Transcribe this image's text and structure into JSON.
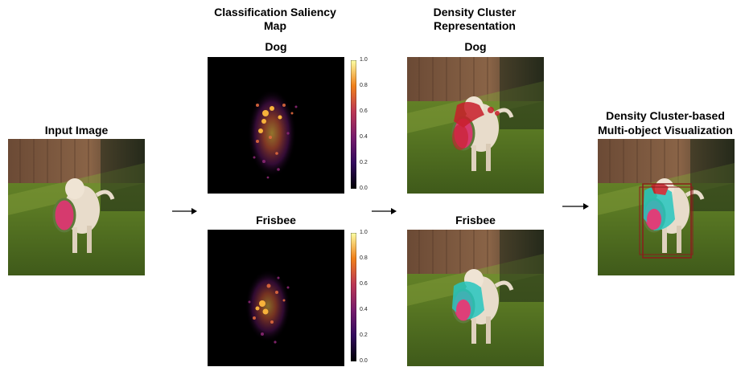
{
  "panels": {
    "input": {
      "title": "Input Image"
    },
    "saliency": {
      "title_line1": "Classification Saliency",
      "title_line2": "Map"
    },
    "density": {
      "title_line1": "Density Cluster",
      "title_line2": "Representation"
    },
    "final": {
      "title_line1": "Density Cluster-based",
      "title_line2": "Multi-object Visualization"
    }
  },
  "classes": {
    "dog": "Dog",
    "frisbee": "Frisbee"
  },
  "colorbar": {
    "ticks": [
      "1.0",
      "0.8",
      "0.6",
      "0.4",
      "0.2",
      "0.0"
    ],
    "range": [
      0.0,
      1.0
    ],
    "colormap": "inferno"
  },
  "colors": {
    "dog_cluster": "#c81e2a",
    "frisbee_cluster": "#27c6c0",
    "frisbee_pink": "#e0407a",
    "bbox": "#8b1c1c",
    "saliency_bg": "#000000"
  },
  "flow": [
    "input",
    "saliency",
    "density",
    "final"
  ]
}
